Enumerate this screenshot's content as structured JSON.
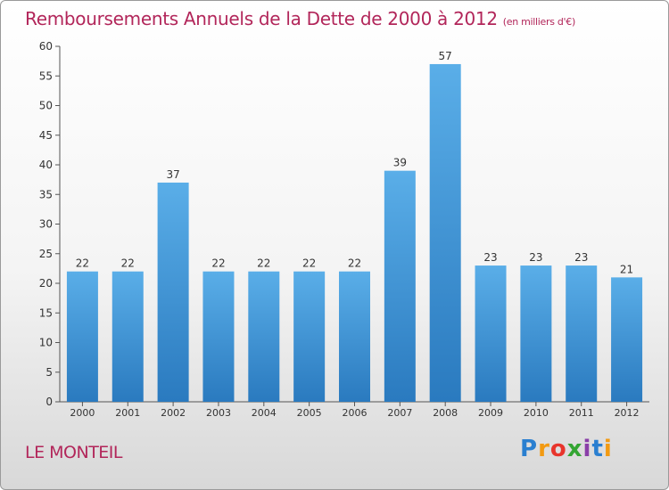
{
  "title": "Remboursements Annuels de la Dette de 2000 à 2012",
  "unit": "(en milliers d'€)",
  "commune": "LE MONTEIL",
  "logo": {
    "letters": [
      "P",
      "r",
      "o",
      "x",
      "i",
      "t",
      "i"
    ],
    "colors": [
      "#2a7fd0",
      "#f29a12",
      "#e8352c",
      "#33a532",
      "#8a3fa8",
      "#2a7fd0",
      "#f29a12"
    ]
  },
  "colors": {
    "bar_top": "#5aaee8",
    "bar_bottom": "#2a7abf",
    "title": "#b2265a"
  },
  "chart_data": {
    "type": "bar",
    "categories": [
      "2000",
      "2001",
      "2002",
      "2003",
      "2004",
      "2005",
      "2006",
      "2007",
      "2008",
      "2009",
      "2010",
      "2011",
      "2012"
    ],
    "values": [
      22,
      22,
      37,
      22,
      22,
      22,
      22,
      39,
      57,
      23,
      23,
      23,
      21
    ],
    "ylim": [
      0,
      60
    ],
    "yticks": [
      0,
      5,
      10,
      15,
      20,
      25,
      30,
      35,
      40,
      45,
      50,
      55,
      60
    ],
    "grid": false
  }
}
